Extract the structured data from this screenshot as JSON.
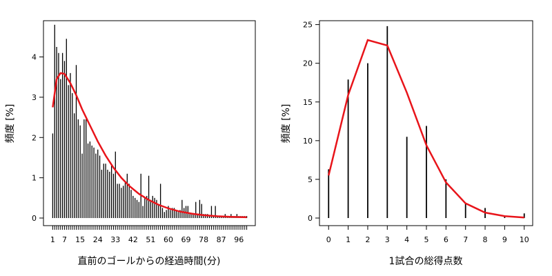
{
  "colors": {
    "fit_line": "#e8141a",
    "bars": "#000000",
    "frame": "#000000"
  },
  "chart_data": [
    {
      "type": "bar",
      "xlabel": "直前のゴールからの経過時間(分)",
      "ylabel": "頻度 [%]",
      "x_tick_labels": [
        "1",
        "7",
        "15",
        "24",
        "33",
        "42",
        "51",
        "60",
        "69",
        "78",
        "87",
        "96"
      ],
      "y_tick_labels": [
        "0",
        "1",
        "2",
        "3",
        "4"
      ],
      "x": [
        1,
        2,
        3,
        4,
        5,
        6,
        7,
        8,
        9,
        10,
        11,
        12,
        13,
        14,
        15,
        16,
        17,
        18,
        19,
        20,
        21,
        22,
        23,
        24,
        25,
        26,
        27,
        28,
        29,
        30,
        31,
        32,
        33,
        34,
        35,
        36,
        37,
        38,
        39,
        40,
        41,
        42,
        43,
        44,
        45,
        46,
        47,
        48,
        49,
        50,
        51,
        52,
        53,
        54,
        55,
        56,
        57,
        58,
        59,
        60,
        61,
        62,
        63,
        64,
        65,
        66,
        67,
        68,
        69,
        70,
        71,
        72,
        73,
        74,
        75,
        76,
        77,
        78,
        79,
        80,
        81,
        82,
        83,
        84,
        85,
        86,
        87,
        88,
        89,
        90,
        91,
        92,
        93,
        94,
        95,
        96,
        97,
        98,
        99,
        100
      ],
      "values": [
        2.1,
        4.8,
        4.25,
        4.1,
        3.45,
        4.1,
        3.9,
        4.45,
        3.3,
        3.6,
        3.1,
        2.6,
        3.8,
        2.45,
        2.3,
        1.6,
        2.45,
        2.45,
        1.85,
        1.9,
        1.8,
        1.75,
        1.6,
        1.7,
        1.55,
        1.2,
        1.35,
        1.35,
        1.2,
        1.15,
        1.3,
        1.1,
        1.65,
        0.85,
        0.85,
        0.75,
        0.8,
        0.9,
        1.1,
        0.85,
        0.7,
        0.55,
        0.5,
        0.45,
        0.4,
        1.1,
        0.3,
        0.5,
        0.55,
        1.05,
        0.45,
        0.55,
        0.5,
        0.45,
        0.35,
        0.85,
        0.25,
        0.15,
        0.2,
        0.3,
        0.2,
        0.25,
        0.25,
        0.2,
        0.15,
        0.2,
        0.45,
        0.25,
        0.3,
        0.3,
        0.1,
        0.1,
        0.1,
        0.4,
        0.1,
        0.45,
        0.35,
        0.1,
        0.1,
        0.1,
        0.05,
        0.3,
        0.05,
        0.3,
        0.05,
        0.05,
        0.05,
        0.05,
        0.1,
        0.05,
        0.05,
        0.1,
        0.05,
        0.05,
        0.1,
        0.05,
        0.05,
        0.05,
        0.05,
        0.05
      ],
      "fit_line": [
        [
          1,
          2.75
        ],
        [
          3,
          3.45
        ],
        [
          5,
          3.6
        ],
        [
          7,
          3.58
        ],
        [
          10,
          3.35
        ],
        [
          13,
          3.05
        ],
        [
          16,
          2.7
        ],
        [
          20,
          2.3
        ],
        [
          24,
          1.9
        ],
        [
          28,
          1.55
        ],
        [
          32,
          1.25
        ],
        [
          36,
          1.0
        ],
        [
          40,
          0.8
        ],
        [
          45,
          0.6
        ],
        [
          50,
          0.45
        ],
        [
          55,
          0.33
        ],
        [
          60,
          0.24
        ],
        [
          66,
          0.16
        ],
        [
          72,
          0.11
        ],
        [
          78,
          0.07
        ],
        [
          85,
          0.045
        ],
        [
          92,
          0.03
        ],
        [
          100,
          0.02
        ]
      ],
      "xlim": [
        0.5,
        100.5
      ],
      "ylim": [
        0,
        4.9
      ]
    },
    {
      "type": "bar",
      "xlabel": "1試合の総得点数",
      "ylabel": "頻度 [%]",
      "x_tick_labels": [
        "0",
        "1",
        "2",
        "3",
        "4",
        "5",
        "6",
        "7",
        "8",
        "9",
        "10"
      ],
      "y_tick_labels": [
        "0",
        "5",
        "10",
        "15",
        "20",
        "25"
      ],
      "x": [
        0,
        1,
        2,
        3,
        4,
        5,
        6,
        7,
        8,
        9,
        10
      ],
      "values": [
        6.3,
        17.9,
        20.0,
        24.8,
        10.5,
        11.9,
        5.0,
        1.9,
        1.3,
        0.2,
        0.6
      ],
      "fit_line": [
        [
          0,
          5.5
        ],
        [
          1,
          15.9
        ],
        [
          2,
          23.0
        ],
        [
          3,
          22.3
        ],
        [
          4,
          16.2
        ],
        [
          5,
          9.4
        ],
        [
          6,
          4.6
        ],
        [
          7,
          1.9
        ],
        [
          8,
          0.7
        ],
        [
          9,
          0.25
        ],
        [
          10,
          0.07
        ]
      ],
      "xlim": [
        -0.15,
        10.15
      ],
      "ylim": [
        0,
        25.5
      ]
    }
  ]
}
